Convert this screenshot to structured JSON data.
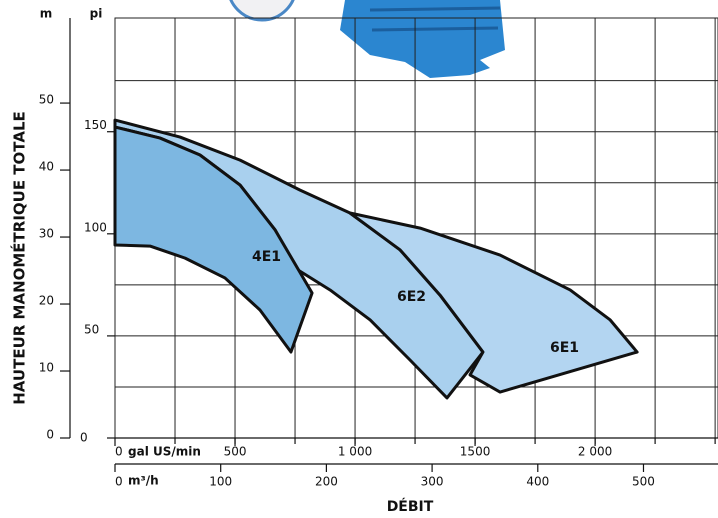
{
  "chart_data": {
    "type": "area",
    "x_label": "gal US/min",
    "x2_label": "m³/h",
    "xaxis_title": "DÉBIT",
    "y_label": "pi",
    "y2_label": "m",
    "yaxis_title": "HAUTEUR MANOMÉTRIQUE TOTALE",
    "xlim": [
      0,
      2512
    ],
    "xticks": [
      0,
      500,
      {
        "value": 1000,
        "label": "1 000"
      },
      1500,
      {
        "value": 2000,
        "label": "2 000"
      }
    ],
    "xgrid": [
      250,
      500,
      750,
      1000,
      1250,
      1500,
      1750,
      2000,
      2250,
      2500
    ],
    "x2lim": [
      0,
      570.5
    ],
    "x2ticks": [
      0,
      100,
      200,
      300,
      400,
      500
    ],
    "ylim": [
      0,
      205.7
    ],
    "yticks": [
      0,
      50,
      100,
      150
    ],
    "ygrid": [
      25,
      50,
      75,
      100,
      125,
      150,
      175
    ],
    "y2lim": [
      0,
      62.7
    ],
    "y2ticks": [
      0,
      10,
      20,
      30,
      40,
      50
    ],
    "series": [
      {
        "name": "6E2",
        "color": "#a9d0ee",
        "x": [
          0,
          271,
          521,
          771,
          979,
          1188,
          1354,
          1533,
          1383,
          1229,
          1063,
          896,
          750,
          667,
          521,
          354,
          187.5,
          0
        ],
        "values": [
          155.7,
          147.4,
          136.1,
          121.4,
          110.2,
          92.1,
          70.0,
          42.1,
          19.6,
          38.2,
          57.8,
          72.5,
          83.2,
          101.9,
          123.9,
          138.6,
          146.9,
          152.3
        ]
      },
      {
        "name": "6E1",
        "color": "#b3d5f1",
        "x": [
          979,
          1271,
          1604,
          1896,
          2063,
          2175,
          1604,
          1479,
          1533,
          1354,
          1188
        ],
        "values": [
          110.2,
          102.8,
          89.6,
          72.5,
          57.8,
          42.1,
          22.5,
          30.9,
          42.1,
          70.0,
          92.1
        ]
      },
      {
        "name": "4E1",
        "color": "#7db7e1",
        "x": [
          0,
          187.5,
          354,
          521,
          667,
          821,
          733,
          604,
          458,
          292,
          146,
          0
        ],
        "values": [
          152.3,
          146.9,
          138.6,
          123.9,
          101.9,
          71.0,
          42.1,
          62.7,
          78.4,
          88.1,
          94.0,
          94.5
        ]
      }
    ]
  }
}
